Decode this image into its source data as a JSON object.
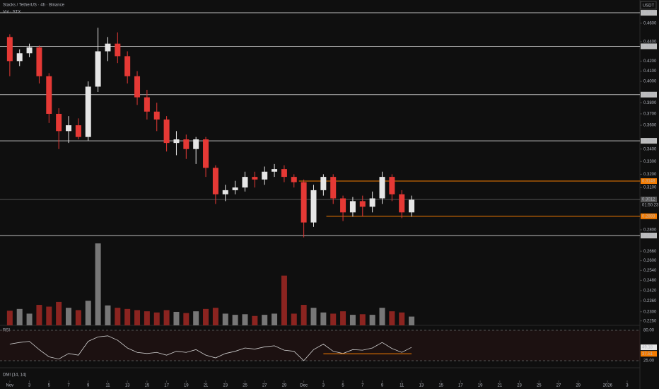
{
  "chart_data": {
    "type": "candlestick",
    "title": "Stacks / TetherUS · 4h · Binance",
    "volume_title": "Vol · STX",
    "rsi_title": "RSI",
    "dmi_title": "DMI (14, 14)",
    "currency": "USDT",
    "log_scale": true,
    "up_color": "#e6e6e6",
    "down_color": "#e53935",
    "x": [
      0,
      1,
      2,
      3,
      4,
      5,
      6,
      7,
      8,
      9,
      10,
      11,
      12,
      13,
      14,
      15,
      16,
      17,
      18,
      19,
      20,
      21,
      22,
      23,
      24,
      25,
      26,
      27,
      28,
      29,
      30,
      31,
      32,
      33,
      34,
      35,
      36,
      37,
      38,
      39,
      40,
      41
    ],
    "xlim": [
      -1,
      64.3
    ],
    "xticks": [
      {
        "value": 0,
        "label": "Nov"
      },
      {
        "value": 2,
        "label": "3"
      },
      {
        "value": 4,
        "label": "5"
      },
      {
        "value": 6,
        "label": "7"
      },
      {
        "value": 8,
        "label": "9"
      },
      {
        "value": 10,
        "label": "11"
      },
      {
        "value": 12,
        "label": "13"
      },
      {
        "value": 14,
        "label": "15"
      },
      {
        "value": 16,
        "label": "17"
      },
      {
        "value": 18,
        "label": "19"
      },
      {
        "value": 20,
        "label": "21"
      },
      {
        "value": 22,
        "label": "23"
      },
      {
        "value": 24,
        "label": "25"
      },
      {
        "value": 26,
        "label": "27"
      },
      {
        "value": 28,
        "label": "29"
      },
      {
        "value": 30,
        "label": "Dec"
      },
      {
        "value": 32,
        "label": "3"
      },
      {
        "value": 34,
        "label": "5"
      },
      {
        "value": 36,
        "label": "7"
      },
      {
        "value": 38,
        "label": "9"
      },
      {
        "value": 40,
        "label": "11"
      },
      {
        "value": 42,
        "label": "13"
      },
      {
        "value": 44,
        "label": "15"
      },
      {
        "value": 46,
        "label": "17"
      },
      {
        "value": 48,
        "label": "19"
      },
      {
        "value": 50,
        "label": "21"
      },
      {
        "value": 52,
        "label": "23"
      },
      {
        "value": 54,
        "label": "25"
      },
      {
        "value": 56,
        "label": "27"
      },
      {
        "value": 58,
        "label": "29"
      },
      {
        "value": 61,
        "label": "2026"
      },
      {
        "value": 63,
        "label": "3"
      }
    ],
    "candles": {
      "open": [
        0.445,
        0.42,
        0.428,
        0.434,
        0.405,
        0.37,
        0.355,
        0.36,
        0.35,
        0.395,
        0.43,
        0.438,
        0.425,
        0.405,
        0.385,
        0.372,
        0.365,
        0.345,
        0.348,
        0.34,
        0.348,
        0.325,
        0.305,
        0.308,
        0.31,
        0.318,
        0.316,
        0.322,
        0.324,
        0.318,
        0.314,
        0.285,
        0.308,
        0.318,
        0.302,
        0.292,
        0.3,
        0.296,
        0.302,
        0.318,
        0.305,
        0.292
      ],
      "high": [
        0.448,
        0.432,
        0.438,
        0.436,
        0.408,
        0.375,
        0.368,
        0.366,
        0.4,
        0.455,
        0.445,
        0.45,
        0.43,
        0.41,
        0.392,
        0.38,
        0.368,
        0.355,
        0.352,
        0.35,
        0.35,
        0.327,
        0.312,
        0.315,
        0.322,
        0.322,
        0.326,
        0.328,
        0.327,
        0.32,
        0.316,
        0.312,
        0.32,
        0.32,
        0.304,
        0.303,
        0.304,
        0.307,
        0.322,
        0.32,
        0.308,
        0.304
      ],
      "low": [
        0.405,
        0.415,
        0.424,
        0.398,
        0.362,
        0.34,
        0.345,
        0.348,
        0.347,
        0.39,
        0.42,
        0.418,
        0.398,
        0.378,
        0.365,
        0.355,
        0.338,
        0.335,
        0.332,
        0.328,
        0.318,
        0.298,
        0.3,
        0.305,
        0.307,
        0.31,
        0.312,
        0.318,
        0.314,
        0.31,
        0.275,
        0.282,
        0.304,
        0.298,
        0.286,
        0.289,
        0.289,
        0.292,
        0.298,
        0.3,
        0.288,
        0.289
      ],
      "close": [
        0.42,
        0.428,
        0.434,
        0.405,
        0.37,
        0.355,
        0.36,
        0.35,
        0.395,
        0.43,
        0.438,
        0.425,
        0.405,
        0.385,
        0.372,
        0.365,
        0.345,
        0.348,
        0.34,
        0.348,
        0.325,
        0.305,
        0.308,
        0.31,
        0.318,
        0.316,
        0.322,
        0.324,
        0.318,
        0.314,
        0.285,
        0.308,
        0.318,
        0.302,
        0.292,
        0.3,
        0.296,
        0.302,
        0.318,
        0.305,
        0.292,
        0.301
      ]
    },
    "ylim": [
      0.2226,
      0.4864
    ],
    "yticks": [
      {
        "value": 0.46,
        "label": "0.4600"
      },
      {
        "value": 0.44,
        "label": "0.4400"
      },
      {
        "value": 0.42,
        "label": "0.4200"
      },
      {
        "value": 0.41,
        "label": "0.4100"
      },
      {
        "value": 0.4,
        "label": "0.4000"
      },
      {
        "value": 0.38,
        "label": "0.3800"
      },
      {
        "value": 0.37,
        "label": "0.3700"
      },
      {
        "value": 0.36,
        "label": "0.3600"
      },
      {
        "value": 0.34,
        "label": "0.3400"
      },
      {
        "value": 0.33,
        "label": "0.3300"
      },
      {
        "value": 0.32,
        "label": "0.3200"
      },
      {
        "value": 0.31,
        "label": "0.3100"
      },
      {
        "value": 0.28,
        "label": "0.2800"
      },
      {
        "value": 0.266,
        "label": "0.2660"
      },
      {
        "value": 0.26,
        "label": "0.2600"
      },
      {
        "value": 0.254,
        "label": "0.2540"
      },
      {
        "value": 0.248,
        "label": "0.2480"
      },
      {
        "value": 0.242,
        "label": "0.2420"
      },
      {
        "value": 0.236,
        "label": "0.2360"
      },
      {
        "value": 0.23,
        "label": "0.2300"
      },
      {
        "value": 0.225,
        "label": "0.2250"
      }
    ],
    "levels": [
      {
        "value": 0.4717,
        "color": "#bdbdbd",
        "from": -1
      },
      {
        "value": 0.4352,
        "color": "#bdbdbd",
        "from": -1
      },
      {
        "value": 0.3875,
        "color": "#bdbdbd",
        "from": -1
      },
      {
        "value": 0.3468,
        "color": "#bdbdbd",
        "from": -1
      },
      {
        "value": 0.3148,
        "color": "#f57c00",
        "from": 29.5
      },
      {
        "value": 0.3012,
        "color": "#555555",
        "from": -1
      },
      {
        "value": 0.2893,
        "color": "#f57c00",
        "from": 32.3
      },
      {
        "value": 0.2762,
        "color": "#bdbdbd",
        "from": -1
      }
    ],
    "countdown": "01:50:23",
    "volume": {
      "values": [
        2.5,
        2.8,
        2.0,
        3.5,
        3.2,
        4.0,
        3.0,
        2.6,
        4.2,
        14.0,
        3.4,
        3.0,
        2.8,
        2.6,
        2.4,
        2.2,
        2.6,
        2.3,
        2.1,
        2.4,
        2.8,
        3.0,
        2.0,
        1.8,
        1.9,
        1.6,
        1.8,
        2.0,
        8.5,
        2.0,
        3.5,
        3.0,
        2.2,
        2.0,
        2.4,
        1.8,
        1.9,
        1.8,
        3.0,
        2.4,
        2.2,
        1.5
      ],
      "ylim": [
        0,
        14.5
      ]
    },
    "rsi": {
      "values": [
        55,
        58,
        60,
        45,
        32,
        28,
        38,
        35,
        60,
        68,
        70,
        62,
        48,
        40,
        38,
        40,
        35,
        42,
        40,
        45,
        35,
        30,
        38,
        42,
        48,
        46,
        50,
        52,
        44,
        42,
        25,
        45,
        55,
        42,
        38,
        45,
        44,
        48,
        58,
        47,
        40,
        49.18
      ],
      "ylim": [
        14.7,
        86.4
      ],
      "yticks": [
        {
          "value": 80,
          "label": "80.00"
        },
        {
          "value": 25,
          "label": "25.00"
        }
      ],
      "ma_value": 37.51,
      "color": "#d0d0d0"
    }
  }
}
